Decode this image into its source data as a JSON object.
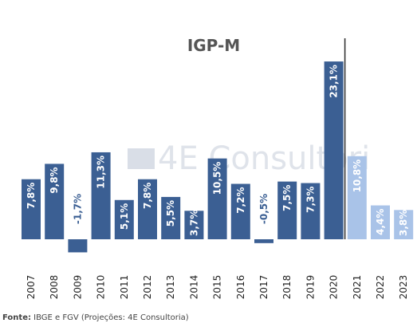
{
  "chart_data": {
    "type": "bar",
    "title": "IGP-M",
    "categories": [
      "2007",
      "2008",
      "2009",
      "2010",
      "2011",
      "2012",
      "2013",
      "2014",
      "2015",
      "2016",
      "2017",
      "2018",
      "2019",
      "2020",
      "2021",
      "2022",
      "2023"
    ],
    "values": [
      7.8,
      9.8,
      -1.7,
      11.3,
      5.1,
      7.8,
      5.5,
      3.7,
      10.5,
      7.2,
      -0.5,
      7.5,
      7.3,
      23.1,
      10.8,
      4.4,
      3.8
    ],
    "labels": [
      "7,8%",
      "9,8%",
      "-1,7%",
      "11,3%",
      "5,1%",
      "7,8%",
      "5,5%",
      "3,7%",
      "10,5%",
      "7,2%",
      "-0,5%",
      "7,5%",
      "7,3%",
      "23,1%",
      "10,8%",
      "4,4%",
      "3,8%"
    ],
    "projected_from_index": 14,
    "colors": {
      "actual": "#3b5f93",
      "projected": "#a9c3e8",
      "projection_divider": "#333333"
    },
    "watermark": "4E Consultori"
  },
  "footer": {
    "source_label": "Fonte:",
    "source_text": "IBGE e FGV (Projeções: 4E Consultoria)"
  }
}
